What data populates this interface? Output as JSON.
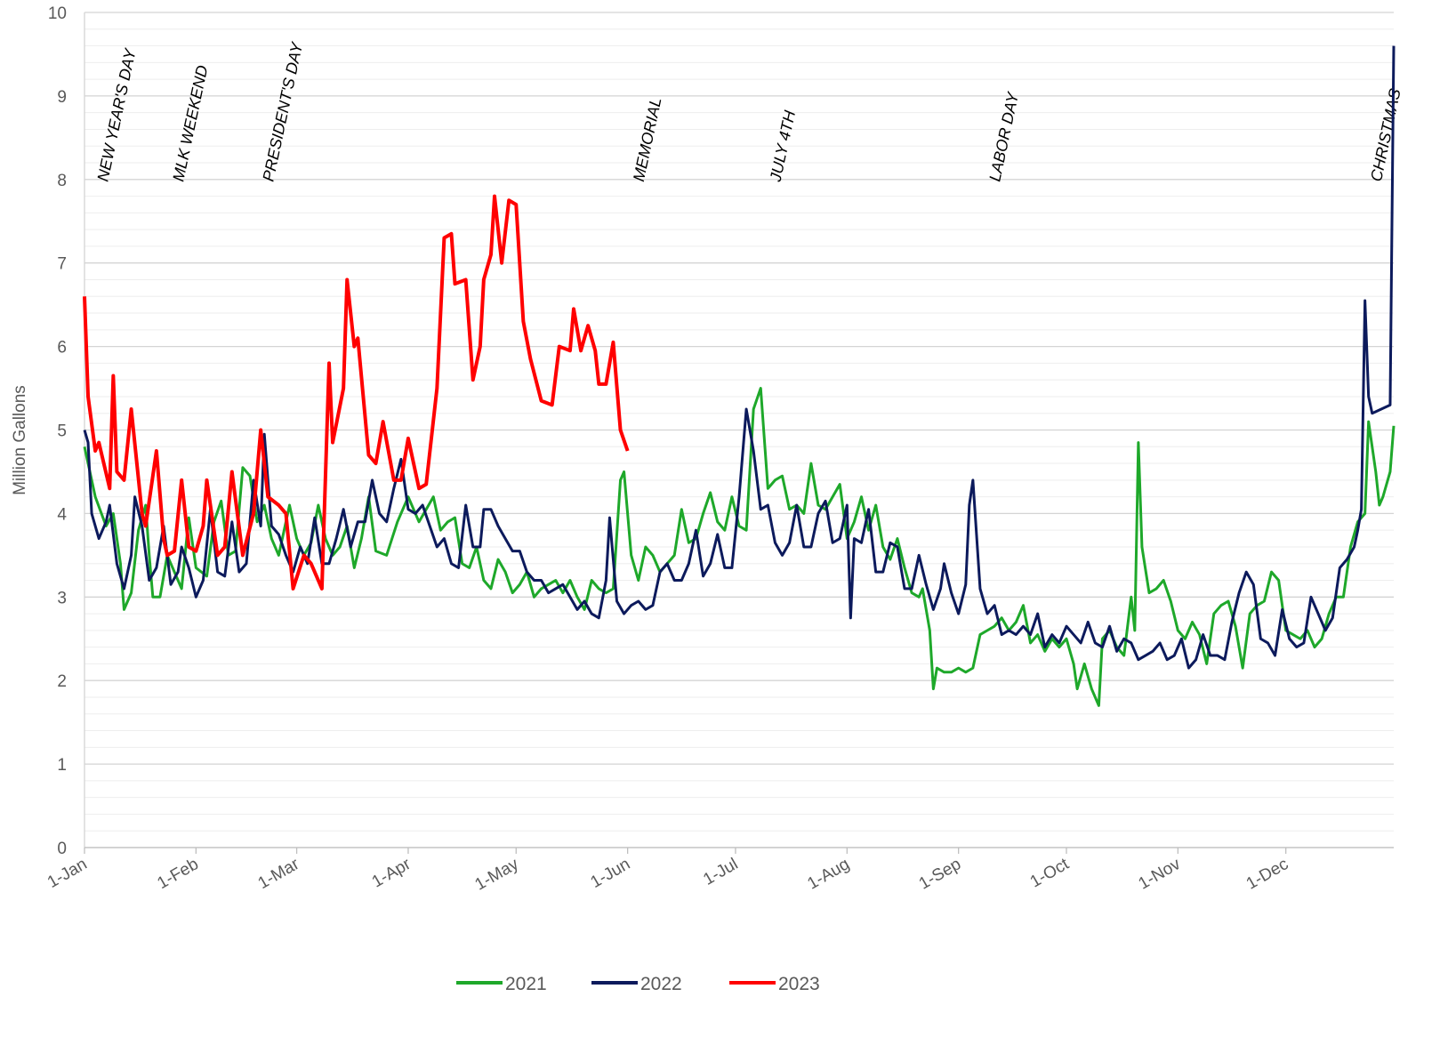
{
  "chart_data": {
    "type": "line",
    "ylabel": "Million Gallons",
    "xlim": [
      0,
      364
    ],
    "xticks": [
      {
        "value": 0,
        "label": "1-Jan"
      },
      {
        "value": 31,
        "label": "1-Feb"
      },
      {
        "value": 59,
        "label": "1-Mar"
      },
      {
        "value": 90,
        "label": "1-Apr"
      },
      {
        "value": 120,
        "label": "1-May"
      },
      {
        "value": 151,
        "label": "1-Jun"
      },
      {
        "value": 181,
        "label": "1-Jul"
      },
      {
        "value": 212,
        "label": "1-Aug"
      },
      {
        "value": 243,
        "label": "1-Sep"
      },
      {
        "value": 273,
        "label": "1-Oct"
      },
      {
        "value": 304,
        "label": "1-Nov"
      },
      {
        "value": 334,
        "label": "1-Dec"
      }
    ],
    "ylim": [
      0,
      10
    ],
    "yticks": [
      0,
      1,
      2,
      3,
      4,
      5,
      6,
      7,
      8,
      9,
      10
    ],
    "yminorticks": [
      0.2,
      0.4,
      0.6,
      0.8,
      1.2,
      1.4,
      1.6,
      1.8,
      2.2,
      2.4,
      2.6,
      2.8,
      3.2,
      3.4,
      3.6,
      3.8,
      4.2,
      4.4,
      4.6,
      4.8,
      5.2,
      5.4,
      5.6,
      5.8,
      6.2,
      6.4,
      6.6,
      6.8,
      7.2,
      7.4,
      7.6,
      7.8,
      8.2,
      8.4,
      8.6,
      8.8,
      9.2,
      9.4,
      9.6,
      9.8
    ],
    "grid": true,
    "legend": "bottom",
    "annotations": [
      {
        "text": "NEW YEAR'S DAY",
        "x": 3
      },
      {
        "text": "MLK WEEKEND",
        "x": 24
      },
      {
        "text": "PRESIDENT'S DAY",
        "x": 49
      },
      {
        "text": "MEMORIAL",
        "x": 152
      },
      {
        "text": "JULY 4TH",
        "x": 190
      },
      {
        "text": "LABOR DAY",
        "x": 251
      },
      {
        "text": "CHRISTMAS",
        "x": 357
      }
    ],
    "series": [
      {
        "name": "2021",
        "color": "#1ea82a",
        "x": [
          0,
          3,
          6,
          8,
          10,
          11,
          13,
          15,
          17,
          18,
          19,
          21,
          23,
          25,
          26,
          27,
          29,
          31,
          34,
          36,
          38,
          40,
          42,
          44,
          46,
          48,
          50,
          52,
          54,
          57,
          59,
          61,
          63,
          65,
          67,
          69,
          71,
          73,
          75,
          77,
          79,
          81,
          84,
          87,
          90,
          93,
          95,
          97,
          99,
          101,
          103,
          105,
          107,
          109,
          111,
          113,
          115,
          117,
          119,
          121,
          123,
          125,
          127,
          129,
          131,
          133,
          135,
          137,
          139,
          141,
          143,
          145,
          147,
          149,
          150,
          152,
          154,
          156,
          158,
          160,
          162,
          164,
          166,
          168,
          170,
          172,
          174,
          176,
          178,
          180,
          182,
          184,
          186,
          188,
          190,
          192,
          194,
          196,
          198,
          200,
          202,
          204,
          206,
          208,
          210,
          212,
          214,
          216,
          218,
          220,
          222,
          224,
          226,
          228,
          230,
          232,
          233,
          235,
          236,
          237,
          239,
          241,
          243,
          245,
          247,
          249,
          251,
          253,
          255,
          257,
          259,
          261,
          263,
          265,
          267,
          269,
          271,
          273,
          275,
          276,
          278,
          280,
          282,
          283,
          285,
          287,
          289,
          291,
          292,
          293,
          294,
          296,
          298,
          300,
          302,
          304,
          306,
          308,
          310,
          312,
          314,
          316,
          318,
          320,
          322,
          324,
          326,
          328,
          330,
          332,
          334,
          336,
          338,
          340,
          342,
          344,
          346,
          348,
          350,
          352,
          354,
          356,
          357,
          359,
          360,
          361,
          363,
          364
        ],
        "values": [
          4.8,
          4.2,
          3.85,
          4.0,
          3.4,
          2.85,
          3.05,
          3.8,
          4.1,
          3.5,
          3.0,
          3.0,
          3.5,
          3.3,
          3.2,
          3.1,
          3.95,
          3.35,
          3.25,
          3.9,
          4.15,
          3.5,
          3.55,
          4.55,
          4.45,
          3.9,
          4.1,
          3.7,
          3.5,
          4.1,
          3.7,
          3.5,
          3.65,
          4.1,
          3.7,
          3.5,
          3.6,
          3.85,
          3.35,
          3.7,
          4.2,
          3.55,
          3.5,
          3.9,
          4.2,
          3.9,
          4.05,
          4.2,
          3.8,
          3.9,
          3.95,
          3.4,
          3.35,
          3.6,
          3.2,
          3.1,
          3.45,
          3.3,
          3.05,
          3.15,
          3.3,
          3.0,
          3.1,
          3.15,
          3.2,
          3.05,
          3.2,
          3.0,
          2.85,
          3.2,
          3.1,
          3.05,
          3.1,
          4.4,
          4.5,
          3.5,
          3.2,
          3.6,
          3.5,
          3.3,
          3.4,
          3.5,
          4.05,
          3.65,
          3.7,
          4.0,
          4.25,
          3.9,
          3.8,
          4.2,
          3.85,
          3.8,
          5.25,
          5.5,
          4.3,
          4.4,
          4.45,
          4.05,
          4.1,
          4.0,
          4.6,
          4.1,
          4.05,
          4.2,
          4.35,
          3.7,
          3.9,
          4.2,
          3.8,
          4.1,
          3.6,
          3.45,
          3.7,
          3.35,
          3.05,
          3.0,
          3.1,
          2.6,
          1.9,
          2.15,
          2.1,
          2.1,
          2.15,
          2.1,
          2.15,
          2.55,
          2.6,
          2.65,
          2.75,
          2.6,
          2.7,
          2.9,
          2.45,
          2.55,
          2.35,
          2.5,
          2.4,
          2.5,
          2.2,
          1.9,
          2.2,
          1.9,
          1.7,
          2.5,
          2.6,
          2.4,
          2.3,
          3.0,
          2.6,
          4.85,
          3.6,
          3.05,
          3.1,
          3.2,
          2.95,
          2.6,
          2.5,
          2.7,
          2.55,
          2.2,
          2.8,
          2.9,
          2.95,
          2.65,
          2.15,
          2.8,
          2.9,
          2.95,
          3.3,
          3.2,
          2.6,
          2.55,
          2.5,
          2.6,
          2.4,
          2.5,
          2.8,
          3.0,
          3.0,
          3.6,
          3.9,
          4.0,
          5.1,
          4.5,
          4.1,
          4.2,
          4.5,
          5.05
        ]
      },
      {
        "name": "2022",
        "color": "#0c1a5c",
        "x": [
          0,
          1,
          2,
          4,
          6,
          7,
          9,
          11,
          13,
          14,
          16,
          18,
          20,
          22,
          24,
          26,
          27,
          29,
          31,
          33,
          35,
          37,
          39,
          41,
          43,
          45,
          47,
          49,
          50,
          52,
          54,
          56,
          58,
          60,
          62,
          64,
          66,
          68,
          70,
          72,
          74,
          76,
          78,
          80,
          82,
          84,
          86,
          88,
          90,
          92,
          94,
          96,
          98,
          100,
          102,
          104,
          106,
          108,
          110,
          111,
          113,
          115,
          117,
          119,
          121,
          123,
          125,
          127,
          129,
          131,
          133,
          135,
          137,
          139,
          141,
          143,
          145,
          146,
          148,
          150,
          152,
          154,
          156,
          158,
          160,
          162,
          164,
          166,
          168,
          170,
          172,
          174,
          176,
          178,
          180,
          182,
          184,
          186,
          188,
          190,
          192,
          194,
          196,
          198,
          200,
          202,
          204,
          206,
          208,
          210,
          212,
          213,
          214,
          216,
          218,
          220,
          222,
          224,
          226,
          228,
          230,
          232,
          234,
          236,
          238,
          239,
          241,
          243,
          245,
          246,
          247,
          249,
          251,
          253,
          255,
          257,
          259,
          261,
          263,
          265,
          267,
          269,
          271,
          273,
          275,
          277,
          279,
          281,
          283,
          285,
          287,
          289,
          291,
          293,
          295,
          297,
          299,
          301,
          303,
          305,
          307,
          309,
          311,
          313,
          315,
          317,
          319,
          321,
          323,
          325,
          327,
          329,
          331,
          333,
          335,
          337,
          339,
          341,
          343,
          345,
          347,
          349,
          351,
          353,
          354,
          355,
          356,
          357,
          358,
          363,
          364
        ],
        "values": [
          5.0,
          4.85,
          4.0,
          3.7,
          3.9,
          4.1,
          3.4,
          3.1,
          3.5,
          4.2,
          3.85,
          3.2,
          3.35,
          3.85,
          3.15,
          3.3,
          3.6,
          3.35,
          3.0,
          3.2,
          4.05,
          3.3,
          3.25,
          3.9,
          3.3,
          3.4,
          4.4,
          3.85,
          4.95,
          3.85,
          3.75,
          3.5,
          3.3,
          3.6,
          3.4,
          3.95,
          3.4,
          3.4,
          3.7,
          4.05,
          3.6,
          3.9,
          3.9,
          4.4,
          4.0,
          3.9,
          4.3,
          4.65,
          4.05,
          4.0,
          4.1,
          3.85,
          3.6,
          3.7,
          3.4,
          3.35,
          4.1,
          3.6,
          3.6,
          4.05,
          4.05,
          3.85,
          3.7,
          3.55,
          3.55,
          3.3,
          3.2,
          3.2,
          3.05,
          3.1,
          3.15,
          3.0,
          2.85,
          2.95,
          2.8,
          2.75,
          3.2,
          3.95,
          2.95,
          2.8,
          2.9,
          2.95,
          2.85,
          2.9,
          3.3,
          3.4,
          3.2,
          3.2,
          3.4,
          3.8,
          3.25,
          3.4,
          3.75,
          3.35,
          3.35,
          4.2,
          5.25,
          4.75,
          4.05,
          4.1,
          3.65,
          3.5,
          3.65,
          4.1,
          3.6,
          3.6,
          4.0,
          4.15,
          3.65,
          3.7,
          4.1,
          2.75,
          3.7,
          3.65,
          4.05,
          3.3,
          3.3,
          3.65,
          3.6,
          3.1,
          3.1,
          3.5,
          3.15,
          2.85,
          3.1,
          3.4,
          3.05,
          2.8,
          3.15,
          4.1,
          4.4,
          3.1,
          2.8,
          2.9,
          2.55,
          2.6,
          2.55,
          2.65,
          2.55,
          2.8,
          2.4,
          2.55,
          2.45,
          2.65,
          2.55,
          2.45,
          2.7,
          2.45,
          2.4,
          2.65,
          2.35,
          2.5,
          2.45,
          2.25,
          2.3,
          2.35,
          2.45,
          2.25,
          2.3,
          2.5,
          2.15,
          2.25,
          2.55,
          2.3,
          2.3,
          2.25,
          2.7,
          3.05,
          3.3,
          3.15,
          2.5,
          2.45,
          2.3,
          2.85,
          2.5,
          2.4,
          2.45,
          3.0,
          2.8,
          2.6,
          2.75,
          3.35,
          3.45,
          3.6,
          3.8,
          4.05,
          6.55,
          5.4,
          5.2,
          5.3,
          9.6
        ]
      },
      {
        "name": "2023",
        "color": "#ff0000",
        "x": [
          0,
          1,
          3,
          4,
          7,
          8,
          9,
          11,
          13,
          16,
          17,
          20,
          22,
          23,
          25,
          27,
          29,
          31,
          33,
          34,
          37,
          39,
          41,
          44,
          47,
          49,
          51,
          54,
          56,
          58,
          61,
          63,
          66,
          68,
          69,
          72,
          73,
          75,
          76,
          79,
          81,
          83,
          86,
          88,
          90,
          93,
          95,
          98,
          100,
          102,
          103,
          106,
          108,
          110,
          111,
          113,
          114,
          116,
          118,
          120,
          122,
          124,
          127,
          130,
          132,
          135,
          136,
          138,
          140,
          142,
          143,
          145,
          147,
          149,
          151
        ],
        "values": [
          6.6,
          5.4,
          4.75,
          4.85,
          4.3,
          5.65,
          4.5,
          4.4,
          5.25,
          4.0,
          3.85,
          4.75,
          3.7,
          3.5,
          3.55,
          4.4,
          3.6,
          3.55,
          3.85,
          4.4,
          3.5,
          3.6,
          4.5,
          3.5,
          4.0,
          5.0,
          4.2,
          4.1,
          4.0,
          3.1,
          3.5,
          3.4,
          3.1,
          5.8,
          4.85,
          5.5,
          6.8,
          6.0,
          6.1,
          4.7,
          4.6,
          5.1,
          4.4,
          4.4,
          4.9,
          4.3,
          4.35,
          5.5,
          7.3,
          7.35,
          6.75,
          6.8,
          5.6,
          6.0,
          6.8,
          7.1,
          7.8,
          7.0,
          7.75,
          7.7,
          6.3,
          5.85,
          5.35,
          5.3,
          6.0,
          5.95,
          6.45,
          5.95,
          6.25,
          5.95,
          5.55,
          5.55,
          6.05,
          5.0,
          4.75
        ]
      }
    ]
  }
}
